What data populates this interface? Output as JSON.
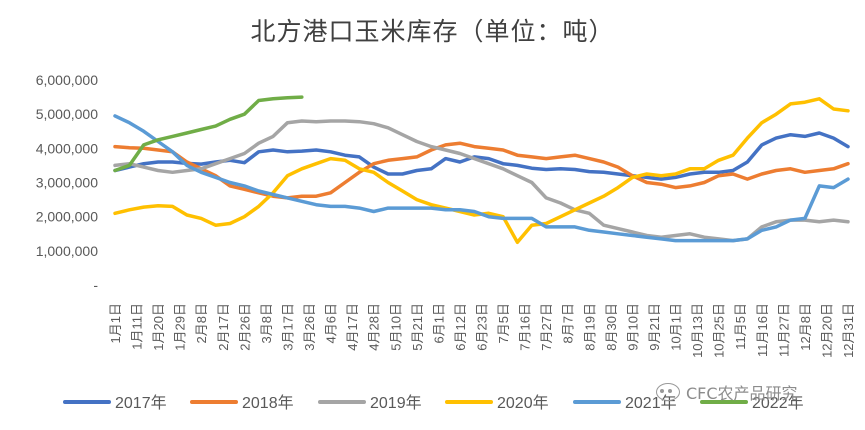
{
  "chart_data": {
    "type": "line",
    "title": "北方港口玉米库存（单位：吨）",
    "xlabel": "",
    "ylabel": "",
    "ylim": [
      0,
      6000000
    ],
    "y_ticks": [
      "6,000,000",
      "5,000,000",
      "4,000,000",
      "3,000,000",
      "2,000,000",
      "1,000,000",
      "-"
    ],
    "x_ticks": [
      "1月1日",
      "1月11日",
      "1月20日",
      "1月29日",
      "2月8日",
      "2月17日",
      "2月26日",
      "3月8日",
      "3月17日",
      "3月26日",
      "4月6日",
      "4月17日",
      "4月28日",
      "5月10日",
      "5月21日",
      "6月1日",
      "6月12日",
      "6月23日",
      "7月5日",
      "7月16日",
      "7月27日",
      "8月7日",
      "8月19日",
      "8月30日",
      "9月10日",
      "9月21日",
      "10月1日",
      "10月13日",
      "10月25日",
      "11月5日",
      "11月16日",
      "11月27日",
      "12月8日",
      "12月20日",
      "12月31日"
    ],
    "grid": false,
    "legend": "bottom",
    "series": [
      {
        "name": "2017年",
        "color": "#4472C4",
        "x": [
          1,
          2,
          3,
          4,
          5,
          6,
          7,
          8,
          9,
          10,
          11,
          12,
          13,
          14,
          15,
          16,
          17,
          18,
          19,
          20,
          21,
          22,
          23,
          24,
          25,
          26,
          27,
          28,
          29,
          30,
          31,
          32,
          33,
          34,
          35,
          36,
          37,
          38,
          39,
          40,
          41,
          42,
          43,
          44,
          45,
          46,
          47,
          48,
          49,
          50,
          51,
          52
        ],
        "y": [
          3350000,
          3450000,
          3550000,
          3600000,
          3600000,
          3560000,
          3540000,
          3600000,
          3650000,
          3580000,
          3900000,
          3950000,
          3900000,
          3920000,
          3950000,
          3900000,
          3800000,
          3750000,
          3450000,
          3250000,
          3250000,
          3350000,
          3400000,
          3700000,
          3600000,
          3750000,
          3700000,
          3550000,
          3500000,
          3420000,
          3380000,
          3400000,
          3380000,
          3320000,
          3300000,
          3250000,
          3200000,
          3150000,
          3100000,
          3150000,
          3250000,
          3300000,
          3300000,
          3350000,
          3600000,
          4100000,
          4300000,
          4400000,
          4350000,
          4450000,
          4300000,
          4050000
        ]
      },
      {
        "name": "2018年",
        "color": "#ED7D31",
        "x": [
          1,
          2,
          3,
          4,
          5,
          6,
          7,
          8,
          9,
          10,
          11,
          12,
          13,
          14,
          15,
          16,
          17,
          18,
          19,
          20,
          21,
          22,
          23,
          24,
          25,
          26,
          27,
          28,
          29,
          30,
          31,
          32,
          33,
          34,
          35,
          36,
          37,
          38,
          39,
          40,
          41,
          42,
          43,
          44,
          45,
          46,
          47,
          48,
          49,
          50,
          51,
          52
        ],
        "y": [
          4050000,
          4020000,
          4000000,
          3950000,
          3900000,
          3600000,
          3400000,
          3200000,
          2900000,
          2800000,
          2700000,
          2600000,
          2550000,
          2600000,
          2600000,
          2700000,
          3000000,
          3300000,
          3550000,
          3650000,
          3700000,
          3750000,
          3950000,
          4100000,
          4150000,
          4050000,
          4000000,
          3950000,
          3800000,
          3750000,
          3700000,
          3750000,
          3800000,
          3700000,
          3600000,
          3450000,
          3200000,
          3000000,
          2950000,
          2850000,
          2900000,
          3000000,
          3200000,
          3250000,
          3100000,
          3250000,
          3350000,
          3400000,
          3300000,
          3350000,
          3400000,
          3550000
        ]
      },
      {
        "name": "2019年",
        "color": "#A5A5A5",
        "x": [
          1,
          2,
          3,
          4,
          5,
          6,
          7,
          8,
          9,
          10,
          11,
          12,
          13,
          14,
          15,
          16,
          17,
          18,
          19,
          20,
          21,
          22,
          23,
          24,
          25,
          26,
          27,
          28,
          29,
          30,
          31,
          32,
          33,
          34,
          35,
          36,
          37,
          38,
          39,
          40,
          41,
          42,
          43,
          44,
          45,
          46,
          47,
          48,
          49,
          50,
          51,
          52
        ],
        "y": [
          3500000,
          3550000,
          3450000,
          3350000,
          3300000,
          3350000,
          3400000,
          3550000,
          3700000,
          3850000,
          4150000,
          4350000,
          4750000,
          4800000,
          4780000,
          4800000,
          4800000,
          4780000,
          4720000,
          4600000,
          4400000,
          4200000,
          4050000,
          3950000,
          3850000,
          3700000,
          3550000,
          3400000,
          3200000,
          3000000,
          2550000,
          2400000,
          2200000,
          2100000,
          1750000,
          1650000,
          1550000,
          1450000,
          1400000,
          1450000,
          1500000,
          1400000,
          1350000,
          1300000,
          1350000,
          1700000,
          1850000,
          1900000,
          1900000,
          1850000,
          1900000,
          1850000
        ]
      },
      {
        "name": "2020年",
        "color": "#FFC000",
        "x": [
          1,
          2,
          3,
          4,
          5,
          6,
          7,
          8,
          9,
          10,
          11,
          12,
          13,
          14,
          15,
          16,
          17,
          18,
          19,
          20,
          21,
          22,
          23,
          24,
          25,
          26,
          27,
          28,
          29,
          30,
          31,
          32,
          33,
          34,
          35,
          36,
          37,
          38,
          39,
          40,
          41,
          42,
          43,
          44,
          45,
          46,
          47,
          48,
          49,
          50,
          51,
          52
        ],
        "y": [
          2100000,
          2200000,
          2280000,
          2320000,
          2300000,
          2050000,
          1950000,
          1750000,
          1800000,
          2000000,
          2300000,
          2700000,
          3200000,
          3400000,
          3550000,
          3700000,
          3650000,
          3400000,
          3300000,
          3000000,
          2750000,
          2500000,
          2350000,
          2250000,
          2150000,
          2050000,
          2100000,
          2000000,
          1250000,
          1750000,
          1800000,
          2000000,
          2200000,
          2400000,
          2600000,
          2850000,
          3150000,
          3250000,
          3200000,
          3250000,
          3400000,
          3400000,
          3650000,
          3800000,
          4300000,
          4750000,
          5000000,
          5300000,
          5350000,
          5450000,
          5150000,
          5100000
        ]
      },
      {
        "name": "2021年",
        "color": "#5B9BD5",
        "x": [
          1,
          2,
          3,
          4,
          5,
          6,
          7,
          8,
          9,
          10,
          11,
          12,
          13,
          14,
          15,
          16,
          17,
          18,
          19,
          20,
          21,
          22,
          23,
          24,
          25,
          26,
          27,
          28,
          29,
          30,
          31,
          32,
          33,
          34,
          35,
          36,
          37,
          38,
          39,
          40,
          41,
          42,
          43,
          44,
          45,
          46,
          47,
          48,
          49,
          50,
          51,
          52
        ],
        "y": [
          4950000,
          4750000,
          4500000,
          4200000,
          3900000,
          3500000,
          3300000,
          3150000,
          3000000,
          2900000,
          2750000,
          2650000,
          2550000,
          2450000,
          2350000,
          2300000,
          2300000,
          2250000,
          2150000,
          2250000,
          2250000,
          2250000,
          2250000,
          2200000,
          2200000,
          2150000,
          2000000,
          1950000,
          1950000,
          1950000,
          1700000,
          1700000,
          1700000,
          1600000,
          1550000,
          1500000,
          1450000,
          1400000,
          1350000,
          1300000,
          1300000,
          1300000,
          1300000,
          1300000,
          1350000,
          1600000,
          1700000,
          1900000,
          1950000,
          2900000,
          2850000,
          3100000
        ]
      },
      {
        "name": "2022年",
        "color": "#70AD47",
        "x": [
          1,
          2,
          3,
          4,
          5,
          6,
          7,
          8,
          9,
          10,
          11,
          12,
          13,
          14
        ],
        "y": [
          3350000,
          3500000,
          4100000,
          4250000,
          4350000,
          4450000,
          4550000,
          4650000,
          4850000,
          5000000,
          5400000,
          5450000,
          5480000,
          5500000
        ]
      }
    ]
  },
  "watermark": {
    "text": "CFC农产品研究"
  }
}
